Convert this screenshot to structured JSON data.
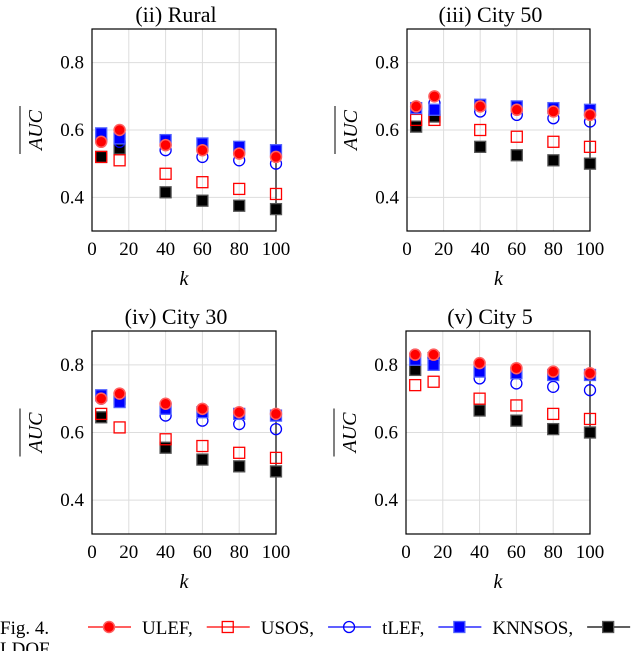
{
  "caption": {
    "fig": "Fig. 4.",
    "wrap": "LDOF"
  },
  "chart_data": [
    {
      "type": "scatter",
      "title": "(ii) Rural",
      "xlabel": "k",
      "ylabel": "AUC",
      "xlim": [
        0,
        100
      ],
      "ylim": [
        0.3,
        0.9
      ],
      "xticks": [
        "0",
        "20",
        "40",
        "60",
        "80",
        "100"
      ],
      "yticks": [
        "0.4",
        "0.6",
        "0.8"
      ],
      "x": [
        5,
        15,
        40,
        60,
        80,
        100
      ],
      "series": [
        {
          "name": "LDOF",
          "values": [
            0.52,
            0.545,
            0.415,
            0.39,
            0.375,
            0.365
          ]
        },
        {
          "name": "USOS",
          "values": [
            0.52,
            0.51,
            0.47,
            0.445,
            0.425,
            0.41
          ]
        },
        {
          "name": "tLEF",
          "values": [
            0.57,
            0.565,
            0.54,
            0.52,
            0.51,
            0.5
          ]
        },
        {
          "name": "KNNSOS",
          "values": [
            0.59,
            0.575,
            0.57,
            0.56,
            0.55,
            0.54
          ]
        },
        {
          "name": "ULEF",
          "values": [
            0.565,
            0.6,
            0.555,
            0.54,
            0.53,
            0.52
          ]
        }
      ]
    },
    {
      "type": "scatter",
      "title": "(iii) City 50",
      "xlabel": "k",
      "ylabel": "AUC",
      "xlim": [
        0,
        100
      ],
      "ylim": [
        0.3,
        0.9
      ],
      "xticks": [
        "0",
        "20",
        "40",
        "60",
        "80",
        "100"
      ],
      "yticks": [
        "0.4",
        "0.6",
        "0.8"
      ],
      "x": [
        5,
        15,
        40,
        60,
        80,
        100
      ],
      "series": [
        {
          "name": "LDOF",
          "values": [
            0.61,
            0.64,
            0.55,
            0.525,
            0.51,
            0.5
          ]
        },
        {
          "name": "USOS",
          "values": [
            0.63,
            0.63,
            0.6,
            0.58,
            0.565,
            0.55
          ]
        },
        {
          "name": "tLEF",
          "values": [
            0.665,
            0.68,
            0.655,
            0.645,
            0.635,
            0.625
          ]
        },
        {
          "name": "KNNSOS",
          "values": [
            0.665,
            0.66,
            0.675,
            0.67,
            0.665,
            0.66
          ]
        },
        {
          "name": "ULEF",
          "values": [
            0.67,
            0.7,
            0.67,
            0.66,
            0.655,
            0.645
          ]
        }
      ]
    },
    {
      "type": "scatter",
      "title": "(iv) City 30",
      "xlabel": "k",
      "ylabel": "AUC",
      "xlim": [
        0,
        100
      ],
      "ylim": [
        0.3,
        0.9
      ],
      "xticks": [
        "0",
        "20",
        "40",
        "60",
        "80",
        "100"
      ],
      "yticks": [
        "0.4",
        "0.6",
        "0.8"
      ],
      "x": [
        5,
        15,
        40,
        60,
        80,
        100
      ],
      "series": [
        {
          "name": "LDOF",
          "values": [
            0.645,
            0.7,
            0.555,
            0.52,
            0.5,
            0.485
          ]
        },
        {
          "name": "USOS",
          "values": [
            0.655,
            0.615,
            0.58,
            0.56,
            0.54,
            0.525
          ]
        },
        {
          "name": "tLEF",
          "values": [
            0.7,
            0.7,
            0.65,
            0.635,
            0.625,
            0.61
          ]
        },
        {
          "name": "KNNSOS",
          "values": [
            0.71,
            0.69,
            0.67,
            0.66,
            0.655,
            0.65
          ]
        },
        {
          "name": "ULEF",
          "values": [
            0.7,
            0.715,
            0.685,
            0.67,
            0.66,
            0.655
          ]
        }
      ]
    },
    {
      "type": "scatter",
      "title": "(v) City 5",
      "xlabel": "k",
      "ylabel": "AUC",
      "xlim": [
        0,
        100
      ],
      "ylim": [
        0.3,
        0.9
      ],
      "xticks": [
        "0",
        "20",
        "40",
        "60",
        "80",
        "100"
      ],
      "yticks": [
        "0.4",
        "0.6",
        "0.8"
      ],
      "x": [
        5,
        15,
        40,
        60,
        80,
        100
      ],
      "series": [
        {
          "name": "LDOF",
          "values": [
            0.785,
            0.82,
            0.665,
            0.635,
            0.61,
            0.6
          ]
        },
        {
          "name": "USOS",
          "values": [
            0.74,
            0.75,
            0.7,
            0.68,
            0.655,
            0.64
          ]
        },
        {
          "name": "tLEF",
          "values": [
            0.83,
            0.82,
            0.76,
            0.745,
            0.735,
            0.725
          ]
        },
        {
          "name": "KNNSOS",
          "values": [
            0.815,
            0.8,
            0.78,
            0.775,
            0.77,
            0.77
          ]
        },
        {
          "name": "ULEF",
          "values": [
            0.83,
            0.83,
            0.805,
            0.79,
            0.78,
            0.775
          ]
        }
      ]
    }
  ],
  "legend": [
    {
      "name": "ULEF",
      "label": "ULEF,",
      "color": "#ff0000",
      "marker": "filled-circle"
    },
    {
      "name": "USOS",
      "label": "USOS,",
      "color": "#ff0000",
      "marker": "open-square"
    },
    {
      "name": "tLEF",
      "label": "tLEF,",
      "color": "#0000ff",
      "marker": "open-circle"
    },
    {
      "name": "KNNSOS",
      "label": "KNNSOS,",
      "color": "#0000ff",
      "marker": "filled-square"
    },
    {
      "name": "LDOF",
      "label": "",
      "color": "#000000",
      "marker": "filled-square"
    }
  ]
}
